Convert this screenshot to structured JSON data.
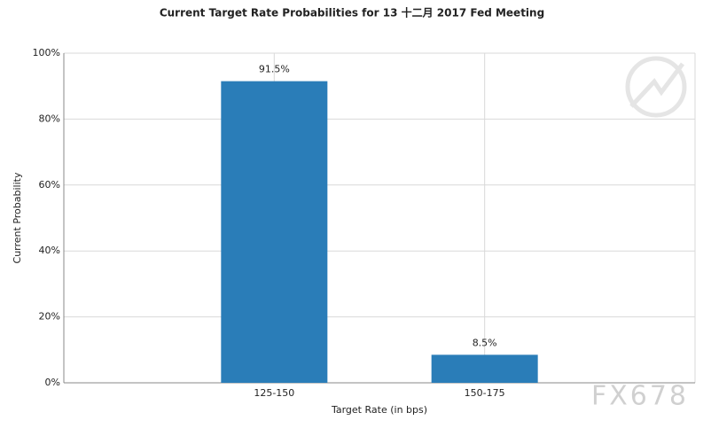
{
  "chart_data": {
    "type": "bar",
    "title": "Current Target Rate Probabilities for 13 十二月 2017 Fed Meeting",
    "x_label": "Target Rate (in bps)",
    "y_label": "Current Probability",
    "categories": [
      "125-150",
      "150-175"
    ],
    "values": [
      91.5,
      8.5
    ],
    "value_labels": [
      "91.5%",
      "8.5%"
    ],
    "color": "#2a7db8",
    "ylim": [
      0,
      100
    ],
    "yticks": [
      {
        "value": 0,
        "label": "0%"
      },
      {
        "value": 20,
        "label": "20%"
      },
      {
        "value": 40,
        "label": "40%"
      },
      {
        "value": 60,
        "label": "60%"
      },
      {
        "value": 80,
        "label": "80%"
      },
      {
        "value": 100,
        "label": "100%"
      }
    ],
    "grid": true,
    "watermark": "FX678"
  }
}
